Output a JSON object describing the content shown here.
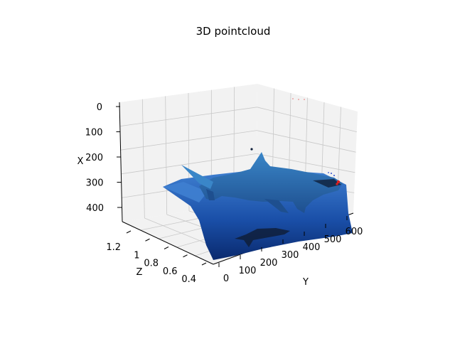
{
  "chart_data": {
    "type": "scatter",
    "projection": "3d",
    "title": "3D pointcloud",
    "xlabel": "X",
    "ylabel": "Y",
    "zlabel": "Z",
    "x_axis": {
      "ticks": [
        0,
        100,
        200,
        300,
        400
      ],
      "inverted": true
    },
    "y_axis": {
      "ticks": [
        0,
        100,
        200,
        300,
        400,
        500,
        600
      ]
    },
    "z_axis": {
      "ticks": [
        0.4,
        0.6,
        0.8,
        1.0,
        1.2
      ]
    },
    "grid": true,
    "legend": "none",
    "colors": {
      "water_deep": "#0a2a6e",
      "water_mid": "#1a4fa8",
      "water_light": "#3f7fd0",
      "shark_body": "#3a86c8",
      "shark_dark": "#1e4f8f",
      "shark_shadow": "#0f1f3a",
      "pane": "#f2f2f2",
      "grid": "#c8c8c8",
      "outlier_red": "#e02020",
      "outlier_blue": "#3050d0"
    }
  }
}
